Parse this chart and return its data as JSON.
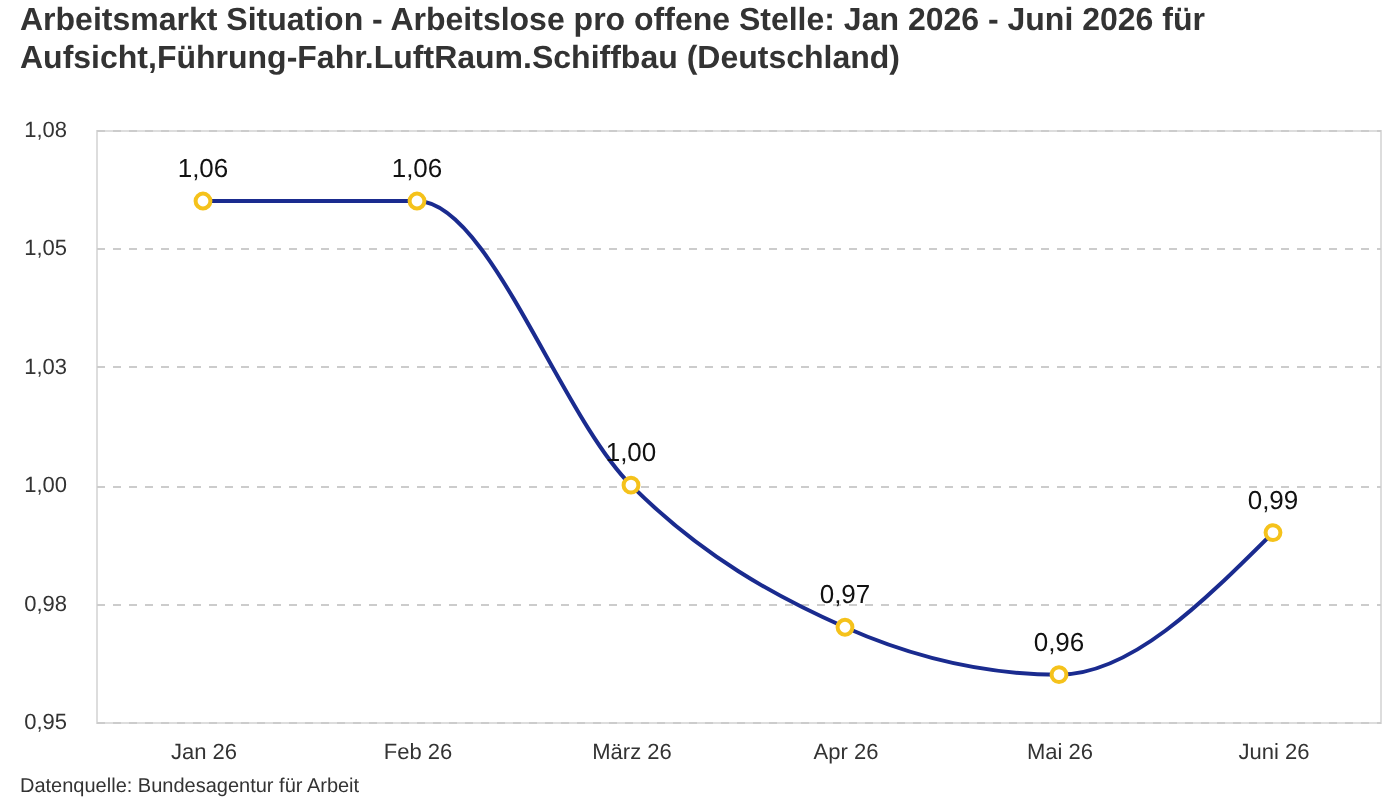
{
  "chart_data": {
    "type": "line",
    "title": "Arbeitsmarkt Situation - Arbeitslose pro offene Stelle: Jan 2026 - Juni 2026 für Aufsicht,Führung-Fahr.LuftRaum.Schiffbau (Deutschland)",
    "categories": [
      "Jan 26",
      "Feb 26",
      "März 26",
      "Apr 26",
      "Mai 26",
      "Juni 26"
    ],
    "series": [
      {
        "color": "#1a2b8f",
        "values": [
          1.06,
          1.06,
          1.0,
          0.97,
          0.96,
          0.99
        ],
        "value_labels": [
          "1,06",
          "1,06",
          "1,00",
          "0,97",
          "0,96",
          "0,99"
        ]
      }
    ],
    "ylim": [
      0.95,
      1.075
    ],
    "yticks": [
      {
        "value": 0.95,
        "label": "0,95"
      },
      {
        "value": 0.975,
        "label": "0,98"
      },
      {
        "value": 1.0,
        "label": "1,00"
      },
      {
        "value": 1.025,
        "label": "1,03"
      },
      {
        "value": 1.05,
        "label": "1,05"
      },
      {
        "value": 1.075,
        "label": "1,08"
      }
    ],
    "grid": "y",
    "marker": "circle",
    "annotations": [
      "Datenquelle: Bundesagentur für Arbeit"
    ]
  }
}
